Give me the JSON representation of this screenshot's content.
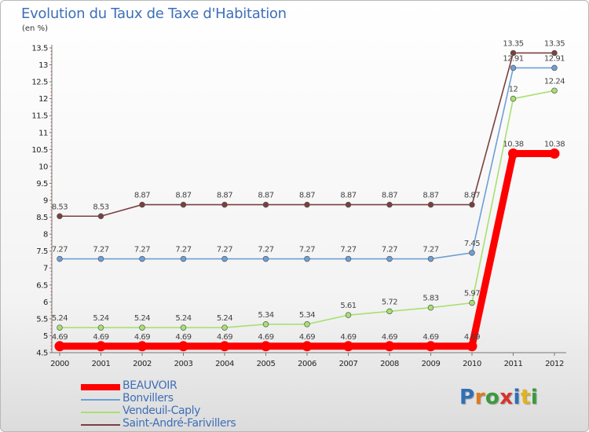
{
  "title": "Evolution du Taux de Taxe d'Habitation",
  "subtitle": "(en %)",
  "logo": {
    "text": "Proxiti",
    "letters": [
      {
        "ch": "P",
        "color": "#2f6fb8"
      },
      {
        "ch": "r",
        "color": "#e07a1e"
      },
      {
        "ch": "o",
        "color": "#3b9a3b"
      },
      {
        "ch": "x",
        "color": "#d6342c"
      },
      {
        "ch": "i",
        "color": "#2f6fb8"
      },
      {
        "ch": "t",
        "color": "#e3b21e"
      },
      {
        "ch": "i",
        "color": "#3b9a3b"
      }
    ]
  },
  "chart_data": {
    "type": "line",
    "title": "Evolution du Taux de Taxe d'Habitation",
    "subtitle": "(en %)",
    "x": [
      "2000",
      "2001",
      "2002",
      "2003",
      "2004",
      "2005",
      "2006",
      "2007",
      "2008",
      "2009",
      "2010",
      "2011",
      "2012"
    ],
    "ylim": [
      4.5,
      13.5
    ],
    "yticks": [
      "4.5",
      "5",
      "5.5",
      "6",
      "6.5",
      "7",
      "7.5",
      "8",
      "8.5",
      "9",
      "9.5",
      "10",
      "10.5",
      "11",
      "11.5",
      "12",
      "12.5",
      "13",
      "13.5"
    ],
    "grid": false,
    "legend": "bottom-left",
    "series": [
      {
        "name": "BEAUVOIR",
        "color": "#ff0000",
        "highlight": true,
        "values": [
          4.69,
          4.69,
          4.69,
          4.69,
          4.69,
          4.69,
          4.69,
          4.69,
          4.69,
          4.69,
          4.69,
          10.38,
          10.38
        ],
        "labels": [
          "4.69",
          "4.69",
          "4.69",
          "4.69",
          "4.69",
          "4.69",
          "4.69",
          "4.69",
          "4.69",
          "4.69",
          "4.69",
          "10.38",
          "10.38"
        ]
      },
      {
        "name": "Bonvillers",
        "color": "#6e9fd6",
        "values": [
          7.27,
          7.27,
          7.27,
          7.27,
          7.27,
          7.27,
          7.27,
          7.27,
          7.27,
          7.27,
          7.45,
          12.91,
          12.91
        ],
        "labels": [
          "7.27",
          "7.27",
          "7.27",
          "7.27",
          "7.27",
          "7.27",
          "7.27",
          "7.27",
          "7.27",
          "7.27",
          "7.45",
          "12.91",
          "12.91"
        ]
      },
      {
        "name": "Vendeuil-Caply",
        "color": "#a8e070",
        "values": [
          5.24,
          5.24,
          5.24,
          5.24,
          5.24,
          5.34,
          5.34,
          5.61,
          5.72,
          5.83,
          5.97,
          12,
          12.24
        ],
        "labels": [
          "5.24",
          "5.24",
          "5.24",
          "5.24",
          "5.24",
          "5.34",
          "5.34",
          "5.61",
          "5.72",
          "5.83",
          "5.97",
          "12",
          "12.24"
        ]
      },
      {
        "name": "Saint-André-Farivillers",
        "color": "#7a4040",
        "values": [
          8.53,
          8.53,
          8.87,
          8.87,
          8.87,
          8.87,
          8.87,
          8.87,
          8.87,
          8.87,
          8.87,
          13.35,
          13.35
        ],
        "labels": [
          "8.53",
          "8.53",
          "8.87",
          "8.87",
          "8.87",
          "8.87",
          "8.87",
          "8.87",
          "8.87",
          "8.87",
          "8.87",
          "13.35",
          "13.35"
        ]
      }
    ]
  }
}
